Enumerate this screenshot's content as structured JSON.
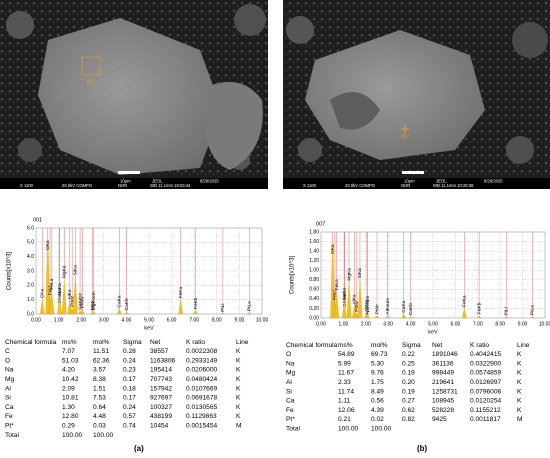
{
  "panels": [
    {
      "label": "(a)",
      "image": {
        "point": "001",
        "bar_top": [
          "10μm",
          "JEOL",
          "8/28/2025"
        ],
        "bar_bottom": [
          "X 1100",
          "20.0kV COMPO",
          "NOR",
          "WD 11.1mm 16:03:44"
        ]
      },
      "spectrum": {
        "id": "001",
        "ylabel": "Counts[x10^3]",
        "xlabel": "keV",
        "xlim": [
          0,
          10
        ],
        "xticks": [
          {
            "value": 0,
            "label": "0.00"
          },
          {
            "value": 1,
            "label": "1.00"
          },
          {
            "value": 2,
            "label": "2.00"
          },
          {
            "value": 3,
            "label": "3.00"
          },
          {
            "value": 4,
            "label": "4.00"
          },
          {
            "value": 5,
            "label": "5.00"
          },
          {
            "value": 6,
            "label": "6.00"
          },
          {
            "value": 7,
            "label": "7.00"
          },
          {
            "value": 8,
            "label": "8.00"
          },
          {
            "value": 9,
            "label": "9.00"
          },
          {
            "value": 10,
            "label": "10.00"
          }
        ],
        "ylim": [
          0,
          6
        ],
        "yticks": [
          {
            "value": 0,
            "label": "0.0"
          },
          {
            "value": 1,
            "label": "1.0"
          },
          {
            "value": 2,
            "label": "2.0"
          },
          {
            "value": 3,
            "label": "3.0"
          },
          {
            "value": 4,
            "label": "4.0"
          },
          {
            "value": 5,
            "label": "5.0"
          },
          {
            "value": 6,
            "label": "6.0"
          }
        ],
        "peaks": [
          {
            "label": "CKa",
            "kev": 0.28,
            "counts": 1.0
          },
          {
            "label": "OKa",
            "kev": 0.52,
            "counts": 5.8
          },
          {
            "label": "FeLl",
            "kev": 0.62,
            "counts": 1.2
          },
          {
            "label": "FeLa",
            "kev": 0.7,
            "counts": 1.6
          },
          {
            "label": "OKsum",
            "kev": 1.05,
            "counts": 0.6
          },
          {
            "label": "NaKa",
            "kev": 1.04,
            "counts": 1.2
          },
          {
            "label": "MgKa",
            "kev": 1.25,
            "counts": 2.4
          },
          {
            "label": "AlKa",
            "kev": 1.49,
            "counts": 0.9
          },
          {
            "label": "PtMz",
            "kev": 1.6,
            "counts": 0.4
          },
          {
            "label": "SiKa",
            "kev": 1.74,
            "counts": 2.6
          },
          {
            "label": "CaKesc",
            "kev": 1.95,
            "counts": 0.2
          },
          {
            "label": "PtMa",
            "kev": 2.05,
            "counts": 0.3
          },
          {
            "label": "PtMr",
            "kev": 2.5,
            "counts": 0.15
          },
          {
            "label": "MgKsum",
            "kev": 2.55,
            "counts": 0.15
          },
          {
            "label": "CaKa",
            "kev": 3.69,
            "counts": 0.35
          },
          {
            "label": "CaKb",
            "kev": 4.01,
            "counts": 0.15
          },
          {
            "label": "FeKa",
            "kev": 6.4,
            "counts": 1.0
          },
          {
            "label": "FeKb",
            "kev": 7.06,
            "counts": 0.25
          },
          {
            "label": "PtLl",
            "kev": 8.27,
            "counts": 0.05
          },
          {
            "label": "PtLa",
            "kev": 9.44,
            "counts": 0.1
          }
        ]
      },
      "table": {
        "header": [
          "Chemical formula",
          "ms%",
          "mol%",
          "Sigma",
          "Net",
          "K ratio",
          "Line"
        ],
        "rows": [
          [
            "C",
            "7.07",
            "11.51",
            "0.28",
            "38557",
            "0.0022308",
            "K"
          ],
          [
            "O",
            "51.03",
            "62.36",
            "0.24",
            "1163806",
            "0.2933149",
            "K"
          ],
          [
            "Na",
            "4.20",
            "3.57",
            "0.23",
            "195414",
            "0.0206000",
            "K"
          ],
          [
            "Mg",
            "10.42",
            "8.38",
            "0.17",
            "707743",
            "0.0480424",
            "K"
          ],
          [
            "Al",
            "2.09",
            "1.51",
            "0.18",
            "157942",
            "0.0107669",
            "K"
          ],
          [
            "Si",
            "10.81",
            "7.53",
            "0.17",
            "927697",
            "0.0691678",
            "K"
          ],
          [
            "Ca",
            "1.30",
            "0.64",
            "0.24",
            "100327",
            "0.0130565",
            "K"
          ],
          [
            "Fe",
            "12.80",
            "4.48",
            "0.57",
            "438199",
            "0.1129863",
            "K"
          ],
          [
            "Pt*",
            "0.29",
            "0.03",
            "0.74",
            "10454",
            "0.0015454",
            "M"
          ],
          [
            "Total",
            "100.00",
            "100.00"
          ]
        ]
      }
    },
    {
      "label": "(b)",
      "image": {
        "point": "007",
        "bar_top": [
          "10μm",
          "JEOL",
          "8/29/2025"
        ],
        "bar_bottom": [
          "X 1100",
          "20.0kV COMPO",
          "NOR",
          "WD 11.1mm 10:29:38"
        ]
      },
      "spectrum": {
        "id": "007",
        "ylabel": "Counts[x10^3]",
        "xlabel": "keV",
        "xlim": [
          0,
          10
        ],
        "xticks": [
          {
            "value": 0,
            "label": "0.00"
          },
          {
            "value": 1,
            "label": "1.00"
          },
          {
            "value": 2,
            "label": "2.00"
          },
          {
            "value": 3,
            "label": "3.00"
          },
          {
            "value": 4,
            "label": "4.00"
          },
          {
            "value": 5,
            "label": "5.00"
          },
          {
            "value": 6,
            "label": "6.00"
          },
          {
            "value": 7,
            "label": "7.00"
          },
          {
            "value": 8,
            "label": "8.00"
          },
          {
            "value": 9,
            "label": "9.00"
          },
          {
            "value": 10,
            "label": "10.00"
          }
        ],
        "ylim": [
          0,
          1.8
        ],
        "yticks": [
          {
            "value": 0,
            "label": "0.00"
          },
          {
            "value": 0.2,
            "label": "0.20"
          },
          {
            "value": 0.4,
            "label": "0.40"
          },
          {
            "value": 0.6,
            "label": "0.60"
          },
          {
            "value": 0.8,
            "label": "0.80"
          },
          {
            "value": 1,
            "label": "1.00"
          },
          {
            "value": 1.2,
            "label": "1.20"
          },
          {
            "value": 1.4,
            "label": "1.40"
          },
          {
            "value": 1.6,
            "label": "1.60"
          },
          {
            "value": 1.8,
            "label": "1.80"
          }
        ],
        "peaks": [
          {
            "label": "OKa",
            "kev": 0.52,
            "counts": 1.62
          },
          {
            "label": "FeLl",
            "kev": 0.62,
            "counts": 0.35
          },
          {
            "label": "FeLa",
            "kev": 0.7,
            "counts": 0.55
          },
          {
            "label": "OKsum",
            "kev": 1.05,
            "counts": 0.2
          },
          {
            "label": "NaKa",
            "kev": 1.04,
            "counts": 0.35
          },
          {
            "label": "MgKa",
            "kev": 1.25,
            "counts": 0.75
          },
          {
            "label": "AlKa",
            "kev": 1.49,
            "counts": 0.25
          },
          {
            "label": "PtMz",
            "kev": 1.6,
            "counts": 0.1
          },
          {
            "label": "SiKa",
            "kev": 1.74,
            "counts": 0.8
          },
          {
            "label": "PtMa",
            "kev": 2.05,
            "counts": 0.12
          },
          {
            "label": "NaKsum",
            "kev": 2.08,
            "counts": 0.05
          },
          {
            "label": "PtMr",
            "kev": 2.5,
            "counts": 0.05
          },
          {
            "label": "AlKsum",
            "kev": 2.98,
            "counts": 0.04
          },
          {
            "label": "CaKa",
            "kev": 3.69,
            "counts": 0.08
          },
          {
            "label": "CaKb",
            "kev": 4.01,
            "counts": 0.03
          },
          {
            "label": "FeKa",
            "kev": 6.4,
            "counts": 0.2
          },
          {
            "label": "FeKb",
            "kev": 7.06,
            "counts": 0.05
          },
          {
            "label": "PtLl",
            "kev": 8.27,
            "counts": 0.02
          },
          {
            "label": "PtLa",
            "kev": 9.44,
            "counts": 0.03
          }
        ]
      },
      "table": {
        "header": [
          "Chemical formula",
          "ms%",
          "mol%",
          "Sigma",
          "Net",
          "K ratio",
          "Line"
        ],
        "rows": [
          [
            "O",
            "54.89",
            "69.73",
            "0.22",
            "1891046",
            "0.4042415",
            "K"
          ],
          [
            "Na",
            "5.99",
            "5.30",
            "0.25",
            "361136",
            "0.0322900",
            "K"
          ],
          [
            "Mg",
            "11.67",
            "9.76",
            "0.19",
            "998449",
            "0.0574859",
            "K"
          ],
          [
            "Al",
            "2.33",
            "1.75",
            "0.20",
            "219641",
            "0.0126997",
            "K"
          ],
          [
            "Si",
            "11.74",
            "8.49",
            "0.19",
            "1258731",
            "0.0796006",
            "K"
          ],
          [
            "Ca",
            "1.11",
            "0.56",
            "0.27",
            "108945",
            "0.0120254",
            "K"
          ],
          [
            "Fe",
            "12.06",
            "4.39",
            "0.62",
            "528228",
            "0.1155212",
            "K"
          ],
          [
            "Pt*",
            "0.21",
            "0.02",
            "0.82",
            "9425",
            "0.0011817",
            "M"
          ],
          [
            "Total",
            "100.00",
            "100.00"
          ]
        ]
      }
    }
  ]
}
